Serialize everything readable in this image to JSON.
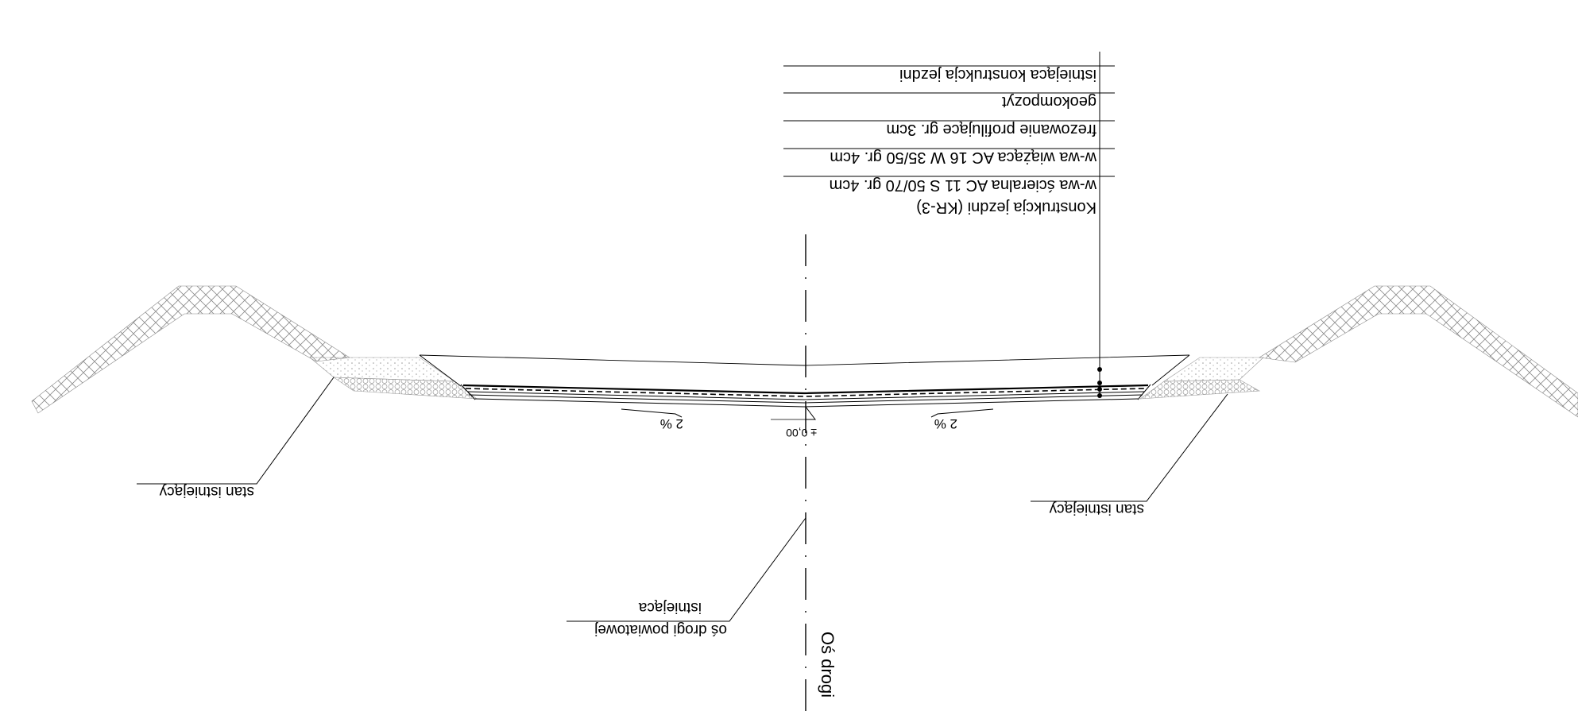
{
  "drawing": {
    "pavement_legend": {
      "title": "Konstrukcja jezdni (KR-3)",
      "layers": [
        "w-wa ścieralna AC 11 S 50/70 gr. 4cm",
        "w-wa wiążąca AC 16 W 35/50 gr. 4cm",
        "frezowanie profilujące gr. 3cm",
        "geokompozyt",
        "istniejąca konstrukcja jezdni"
      ]
    },
    "labels": {
      "existing_left": "stan istniejący",
      "existing_right": "stan istniejący",
      "existing_axis_line1": "oś drogi powiatowej",
      "existing_axis_line2": "istniejąca",
      "road_axis": "Oś drogi",
      "elevation": "± 0,00",
      "slope_left": "2 %",
      "slope_right": "2 %"
    },
    "colors": {
      "line": "#000000",
      "hatch": "#8a8a8a",
      "gravel": "#9a9a9a"
    }
  }
}
